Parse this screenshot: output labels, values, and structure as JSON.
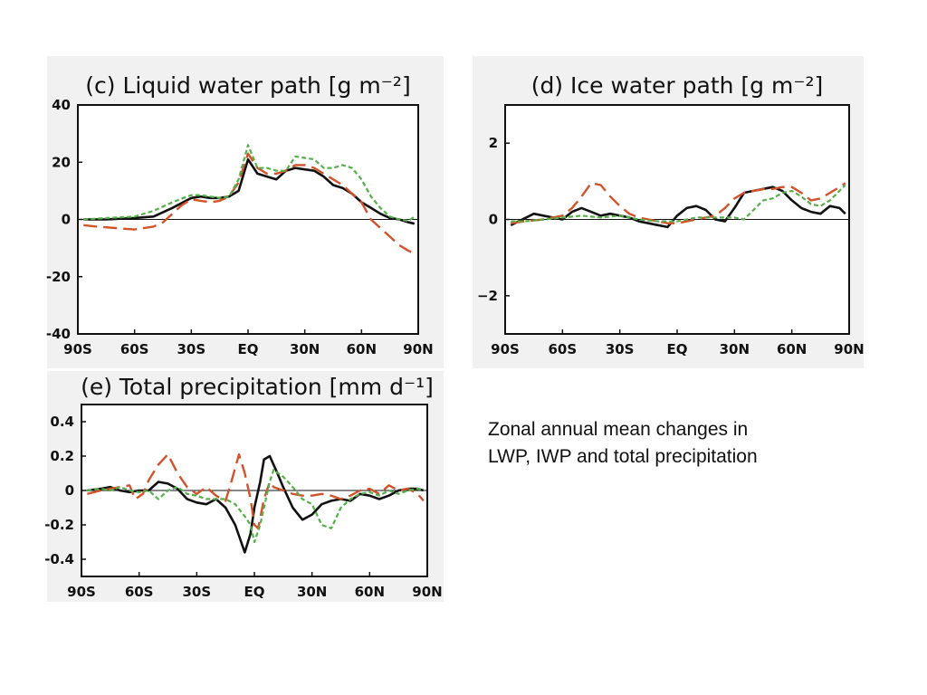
{
  "caption": {
    "line1": "Zonal annual mean changes in",
    "line2": "LWP, IWP and total precipitation"
  },
  "series_styles": [
    {
      "key": "black",
      "color": "#111111",
      "dash": "solid"
    },
    {
      "key": "red",
      "color": "#d2522a",
      "dash": "long-dash"
    },
    {
      "key": "green",
      "color": "#55b04a",
      "dash": "short-dash"
    }
  ],
  "chart_data": [
    {
      "id": "c",
      "type": "line",
      "title": "(c) Liquid water path [g m⁻²]",
      "x_tick_labels": [
        "90S",
        "60S",
        "30S",
        "EQ",
        "30N",
        "60N",
        "90N"
      ],
      "x_ticks": [
        -90,
        -60,
        -30,
        0,
        30,
        60,
        90
      ],
      "xlim": [
        -90,
        90
      ],
      "ylim": [
        -40,
        40
      ],
      "y_ticks": [
        40,
        20,
        0,
        -20,
        -40
      ],
      "y_tick_labels": [
        "40",
        "20",
        "0",
        "-20",
        "-40"
      ],
      "zero_line": true,
      "series": [
        {
          "style": "black",
          "x": [
            -87,
            -75,
            -60,
            -50,
            -40,
            -30,
            -25,
            -20,
            -15,
            -10,
            -5,
            0,
            5,
            10,
            15,
            20,
            25,
            30,
            35,
            40,
            45,
            50,
            55,
            60,
            65,
            70,
            75,
            80,
            85,
            88
          ],
          "y": [
            0,
            0,
            0.5,
            1,
            4,
            7.5,
            8,
            7.5,
            7.5,
            8,
            10,
            21,
            16,
            15,
            14,
            17,
            18,
            17.5,
            17,
            15,
            12,
            11,
            9,
            6,
            4,
            2,
            0.5,
            0,
            -1,
            -1.5
          ]
        },
        {
          "style": "red",
          "x": [
            -87,
            -80,
            -70,
            -60,
            -55,
            -50,
            -45,
            -40,
            -35,
            -30,
            -25,
            -20,
            -15,
            -10,
            -5,
            0,
            5,
            10,
            15,
            20,
            25,
            30,
            35,
            40,
            45,
            50,
            55,
            60,
            65,
            70,
            75,
            80,
            85,
            88
          ],
          "y": [
            -2,
            -2.5,
            -3,
            -3.5,
            -3,
            -2.5,
            -1,
            2,
            5,
            7,
            6.5,
            6,
            6.5,
            8,
            13,
            23,
            18,
            16,
            16,
            17,
            19,
            19,
            18,
            16,
            14,
            12,
            9,
            6,
            0,
            -3,
            -6,
            -9,
            -11,
            -12
          ]
        },
        {
          "style": "green",
          "x": [
            -87,
            -75,
            -60,
            -50,
            -40,
            -30,
            -25,
            -20,
            -15,
            -10,
            -5,
            0,
            5,
            10,
            15,
            20,
            25,
            30,
            35,
            40,
            45,
            50,
            55,
            60,
            65,
            70,
            75,
            80,
            85,
            88
          ],
          "y": [
            0,
            0.5,
            1,
            3,
            6,
            8.5,
            8.5,
            8,
            7.5,
            8,
            14,
            26,
            18,
            18,
            17,
            17,
            22,
            21.5,
            21,
            18,
            18,
            19,
            18,
            14,
            8,
            4,
            1,
            0,
            -0.5,
            1
          ]
        }
      ]
    },
    {
      "id": "d",
      "type": "line",
      "title": "(d) Ice water path [g m⁻²]",
      "x_tick_labels": [
        "90S",
        "60S",
        "30S",
        "EQ",
        "30N",
        "60N",
        "90N"
      ],
      "x_ticks": [
        -90,
        -60,
        -30,
        0,
        30,
        60,
        90
      ],
      "xlim": [
        -90,
        90
      ],
      "ylim": [
        -3,
        3
      ],
      "y_ticks": [
        2,
        0,
        -2
      ],
      "y_tick_labels": [
        "2",
        "0",
        "−2"
      ],
      "zero_line": true,
      "series": [
        {
          "style": "black",
          "x": [
            -87,
            -83,
            -79,
            -75,
            -70,
            -65,
            -60,
            -55,
            -50,
            -45,
            -40,
            -35,
            -30,
            -25,
            -20,
            -15,
            -10,
            -5,
            0,
            5,
            10,
            15,
            20,
            25,
            30,
            35,
            40,
            45,
            50,
            55,
            60,
            65,
            70,
            75,
            80,
            85,
            88
          ],
          "y": [
            -0.15,
            -0.05,
            0.05,
            0.15,
            0.1,
            0.05,
            0,
            0.2,
            0.3,
            0.2,
            0.1,
            0.15,
            0.1,
            0.05,
            -0.05,
            -0.1,
            -0.15,
            -0.2,
            0.1,
            0.3,
            0.35,
            0.25,
            0,
            -0.05,
            0.3,
            0.7,
            0.75,
            0.8,
            0.85,
            0.75,
            0.5,
            0.3,
            0.2,
            0.15,
            0.35,
            0.3,
            0.15
          ]
        },
        {
          "style": "red",
          "x": [
            -87,
            -80,
            -70,
            -60,
            -55,
            -50,
            -45,
            -40,
            -35,
            -30,
            -25,
            -20,
            -15,
            -10,
            -5,
            0,
            5,
            10,
            15,
            20,
            25,
            30,
            35,
            40,
            45,
            50,
            55,
            60,
            65,
            70,
            75,
            80,
            85,
            88
          ],
          "y": [
            -0.1,
            -0.05,
            0,
            0.1,
            0.3,
            0.6,
            0.95,
            0.9,
            0.6,
            0.35,
            0.15,
            0.05,
            0,
            -0.05,
            -0.1,
            -0.1,
            -0.05,
            0,
            0.05,
            0.1,
            0.3,
            0.55,
            0.7,
            0.75,
            0.8,
            0.8,
            0.85,
            0.85,
            0.7,
            0.5,
            0.55,
            0.7,
            0.85,
            0.95
          ]
        },
        {
          "style": "green",
          "x": [
            -87,
            -80,
            -70,
            -60,
            -50,
            -40,
            -30,
            -20,
            -10,
            0,
            5,
            10,
            20,
            30,
            35,
            40,
            45,
            50,
            55,
            60,
            65,
            70,
            75,
            80,
            85,
            88
          ],
          "y": [
            -0.05,
            -0.05,
            0,
            0.05,
            0.1,
            0.05,
            0.1,
            0,
            -0.05,
            -0.05,
            0,
            0.05,
            0.05,
            0.05,
            0,
            0.25,
            0.5,
            0.55,
            0.7,
            0.75,
            0.6,
            0.4,
            0.35,
            0.5,
            0.75,
            0.9
          ]
        }
      ]
    },
    {
      "id": "e",
      "type": "line",
      "title": "(e) Total precipitation [mm d⁻¹]",
      "x_tick_labels": [
        "90S",
        "60S",
        "30S",
        "EQ",
        "30N",
        "60N",
        "90N"
      ],
      "x_ticks": [
        -90,
        -60,
        -30,
        0,
        30,
        60,
        90
      ],
      "xlim": [
        -90,
        90
      ],
      "ylim": [
        -0.5,
        0.5
      ],
      "y_ticks": [
        0.4,
        0.2,
        0,
        -0.2,
        -0.4
      ],
      "y_tick_labels": [
        "0.4",
        "0.2",
        "0",
        "-0.2",
        "-0.4"
      ],
      "zero_line": true,
      "series": [
        {
          "style": "black",
          "x": [
            -87,
            -80,
            -75,
            -70,
            -65,
            -60,
            -55,
            -50,
            -45,
            -40,
            -35,
            -30,
            -25,
            -20,
            -15,
            -10,
            -5,
            -2,
            0,
            3,
            5,
            8,
            10,
            12,
            15,
            20,
            25,
            30,
            35,
            40,
            45,
            50,
            55,
            60,
            65,
            70,
            75,
            80,
            85,
            88
          ],
          "y": [
            0,
            0.01,
            0.02,
            0,
            -0.01,
            0,
            0,
            0.05,
            0.04,
            0.01,
            -0.05,
            -0.07,
            -0.08,
            -0.05,
            -0.1,
            -0.2,
            -0.36,
            -0.25,
            -0.1,
            0.05,
            0.18,
            0.2,
            0.15,
            0.1,
            0.02,
            -0.1,
            -0.17,
            -0.14,
            -0.08,
            -0.06,
            -0.05,
            -0.06,
            -0.02,
            -0.03,
            -0.05,
            -0.03,
            0,
            0.01,
            0.01,
            0
          ]
        },
        {
          "style": "red",
          "x": [
            -87,
            -80,
            -75,
            -70,
            -65,
            -62,
            -58,
            -55,
            -50,
            -45,
            -40,
            -35,
            -30,
            -25,
            -20,
            -15,
            -12,
            -8,
            -5,
            -2,
            0,
            2,
            5,
            8,
            10,
            15,
            20,
            25,
            30,
            35,
            40,
            45,
            50,
            55,
            60,
            65,
            70,
            75,
            80,
            85,
            88
          ],
          "y": [
            -0.02,
            0,
            0.01,
            0.02,
            0.03,
            -0.05,
            -0.02,
            0.06,
            0.15,
            0.21,
            0.1,
            0.02,
            -0.02,
            0.02,
            -0.03,
            -0.06,
            0.05,
            0.21,
            0.1,
            -0.05,
            -0.2,
            -0.22,
            -0.05,
            0.05,
            0.02,
            0,
            -0.02,
            -0.03,
            -0.03,
            -0.02,
            -0.03,
            -0.05,
            -0.03,
            0,
            0.01,
            -0.02,
            0.03,
            0,
            0.01,
            -0.02,
            -0.06
          ]
        },
        {
          "style": "green",
          "x": [
            -87,
            -80,
            -75,
            -70,
            -65,
            -60,
            -55,
            -50,
            -45,
            -40,
            -35,
            -30,
            -25,
            -20,
            -15,
            -10,
            -5,
            -2,
            0,
            3,
            5,
            8,
            10,
            15,
            20,
            25,
            30,
            35,
            40,
            45,
            50,
            55,
            60,
            65,
            70,
            75,
            80,
            85,
            88
          ],
          "y": [
            0,
            0.01,
            0,
            0.02,
            0,
            -0.01,
            0,
            -0.05,
            0,
            0.02,
            -0.02,
            -0.03,
            -0.05,
            -0.05,
            -0.05,
            -0.08,
            -0.15,
            -0.2,
            -0.3,
            -0.2,
            -0.1,
            0.05,
            0.12,
            0.08,
            0.02,
            -0.05,
            -0.08,
            -0.2,
            -0.22,
            -0.1,
            -0.05,
            -0.02,
            -0.01,
            -0.03,
            0,
            -0.02,
            0,
            0.01,
            0
          ]
        }
      ]
    }
  ]
}
